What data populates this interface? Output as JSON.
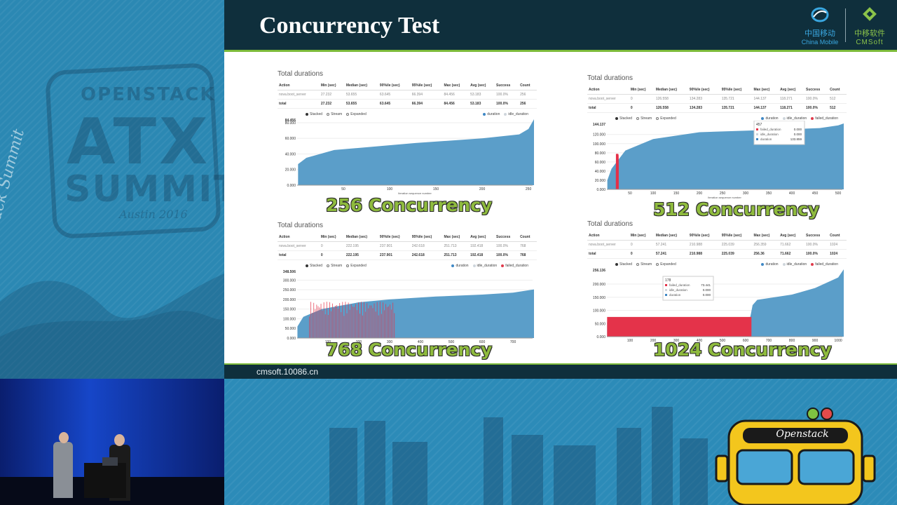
{
  "left_banner": {
    "line1": "OPENSTACK",
    "line2": "ATX",
    "line3": "SUMMIT",
    "line4": "Austin 2016",
    "script": "OpenStack Summit"
  },
  "slide": {
    "title": "Concurrency Test",
    "logos": {
      "china_mobile_zh": "中国移动",
      "china_mobile_en": "China Mobile",
      "cmsoft_zh": "中移软件",
      "cmsoft_en": "CMSoft"
    },
    "footer_url": "cmsoft.10086.cn"
  },
  "columns": [
    "Action",
    "Min (sec)",
    "Median (sec)",
    "90%ile (sec)",
    "95%ile (sec)",
    "Max (sec)",
    "Avg (sec)",
    "Success",
    "Count"
  ],
  "legend": {
    "stacked": "Stacked",
    "stream": "Stream",
    "expanded": "Expanded",
    "duration": "duration",
    "idle": "idle_duration",
    "failed": "failed_duration"
  },
  "x_axis_label": "Iteration sequence number",
  "panels": [
    {
      "title": "Total durations",
      "caption": "256 Concurrency",
      "rows": [
        [
          "nova.boot_server",
          "27.232",
          "53.655",
          "63.645",
          "66.394",
          "84.456",
          "53.183",
          "100.0%",
          "256"
        ],
        [
          "total",
          "27.232",
          "53.655",
          "63.645",
          "66.394",
          "84.456",
          "53.183",
          "100.0%",
          "256"
        ]
      ],
      "chart_data": {
        "type": "area",
        "ymax_label": "84.456",
        "yticks": [
          "0.000",
          "20.000",
          "40.000",
          "60.000",
          "80.000"
        ],
        "xticks": [
          "50",
          "100",
          "150",
          "200",
          "250"
        ],
        "xmax": 256,
        "ymax": 84.456,
        "curve": [
          [
            1,
            27
          ],
          [
            10,
            35
          ],
          [
            40,
            45
          ],
          [
            128,
            54
          ],
          [
            200,
            60
          ],
          [
            240,
            65
          ],
          [
            250,
            72
          ],
          [
            256,
            84.456
          ]
        ],
        "failed": [],
        "tooltip": null
      }
    },
    {
      "title": "Total durations",
      "caption": "512 Concurrency",
      "rows": [
        [
          "nova.boot_server",
          "0",
          "126.558",
          "134.283",
          "135.721",
          "144.137",
          "118.271",
          "100.0%",
          "512"
        ],
        [
          "total",
          "0",
          "126.558",
          "134.283",
          "135.721",
          "144.137",
          "118.271",
          "100.0%",
          "512"
        ]
      ],
      "chart_data": {
        "type": "area",
        "ymax_label": "144.137",
        "yticks": [
          "0.000",
          "20.000",
          "40.000",
          "60.000",
          "80.000",
          "100.000",
          "120.000"
        ],
        "xticks": [
          "50",
          "100",
          "150",
          "200",
          "250",
          "300",
          "350",
          "400",
          "450",
          "500"
        ],
        "xmax": 512,
        "ymax": 144.137,
        "curve": [
          [
            1,
            20
          ],
          [
            10,
            45
          ],
          [
            40,
            85
          ],
          [
            100,
            110
          ],
          [
            200,
            125
          ],
          [
            350,
            130
          ],
          [
            460,
            134
          ],
          [
            500,
            140
          ],
          [
            512,
            144.137
          ]
        ],
        "failed": [
          [
            20,
            25
          ]
        ],
        "tooltip": {
          "title": "457",
          "items": [
            [
              "failed_duration",
              "0.000"
            ],
            [
              "idle_duration",
              "0.000"
            ],
            [
              "duration",
              "133.859"
            ]
          ]
        }
      }
    },
    {
      "title": "Total durations",
      "caption": "768 Concurrency",
      "rows": [
        [
          "nova.boot_server",
          "0",
          "222.195",
          "237.901",
          "242.618",
          "251.713",
          "192.418",
          "100.0%",
          "768"
        ],
        [
          "total",
          "0",
          "222.195",
          "237.901",
          "242.618",
          "251.713",
          "192.418",
          "100.0%",
          "768"
        ]
      ],
      "chart_data": {
        "type": "area",
        "ymax_label": "348.506",
        "yticks": [
          "0.000",
          "50.000",
          "100.000",
          "150.000",
          "200.000",
          "250.000",
          "300.000"
        ],
        "xticks": [
          "100",
          "200",
          "300",
          "400",
          "500",
          "600",
          "700"
        ],
        "xmax": 768,
        "ymax": 348.506,
        "curve": [
          [
            1,
            60
          ],
          [
            20,
            110
          ],
          [
            80,
            150
          ],
          [
            200,
            185
          ],
          [
            300,
            200
          ],
          [
            450,
            215
          ],
          [
            600,
            225
          ],
          [
            700,
            235
          ],
          [
            768,
            251.713
          ]
        ],
        "failed": [
          [
            40,
            320
          ]
        ],
        "tooltip": null
      }
    },
    {
      "title": "Total durations",
      "caption": "1024 Concurrency",
      "rows": [
        [
          "nova.boot_server",
          "0",
          "57.241",
          "210.988",
          "225.039",
          "256.359",
          "71.662",
          "100.0%",
          "1024"
        ],
        [
          "total",
          "0",
          "57.241",
          "210.988",
          "225.039",
          "256.36",
          "71.662",
          "100.0%",
          "1024"
        ]
      ],
      "chart_data": {
        "type": "area",
        "ymax_label": "256.136",
        "yticks": [
          "0.000",
          "50.000",
          "100.000",
          "150.000",
          "200.000"
        ],
        "xticks": [
          "100",
          "200",
          "300",
          "400",
          "500",
          "600",
          "700",
          "800",
          "900",
          "1000"
        ],
        "xmax": 1024,
        "ymax": 256.136,
        "curve": [
          [
            1,
            55
          ],
          [
            620,
            75
          ],
          [
            630,
            120
          ],
          [
            650,
            140
          ],
          [
            800,
            160
          ],
          [
            900,
            185
          ],
          [
            1000,
            225
          ],
          [
            1024,
            256.136
          ]
        ],
        "failed": [
          [
            1,
            625
          ]
        ],
        "failed_level": 75,
        "tooltip": {
          "title": "178",
          "items": [
            [
              "failed_duration",
              "73.441"
            ],
            [
              "idle_duration",
              "0.000"
            ],
            [
              "duration",
              "0.000"
            ]
          ]
        }
      }
    }
  ]
}
